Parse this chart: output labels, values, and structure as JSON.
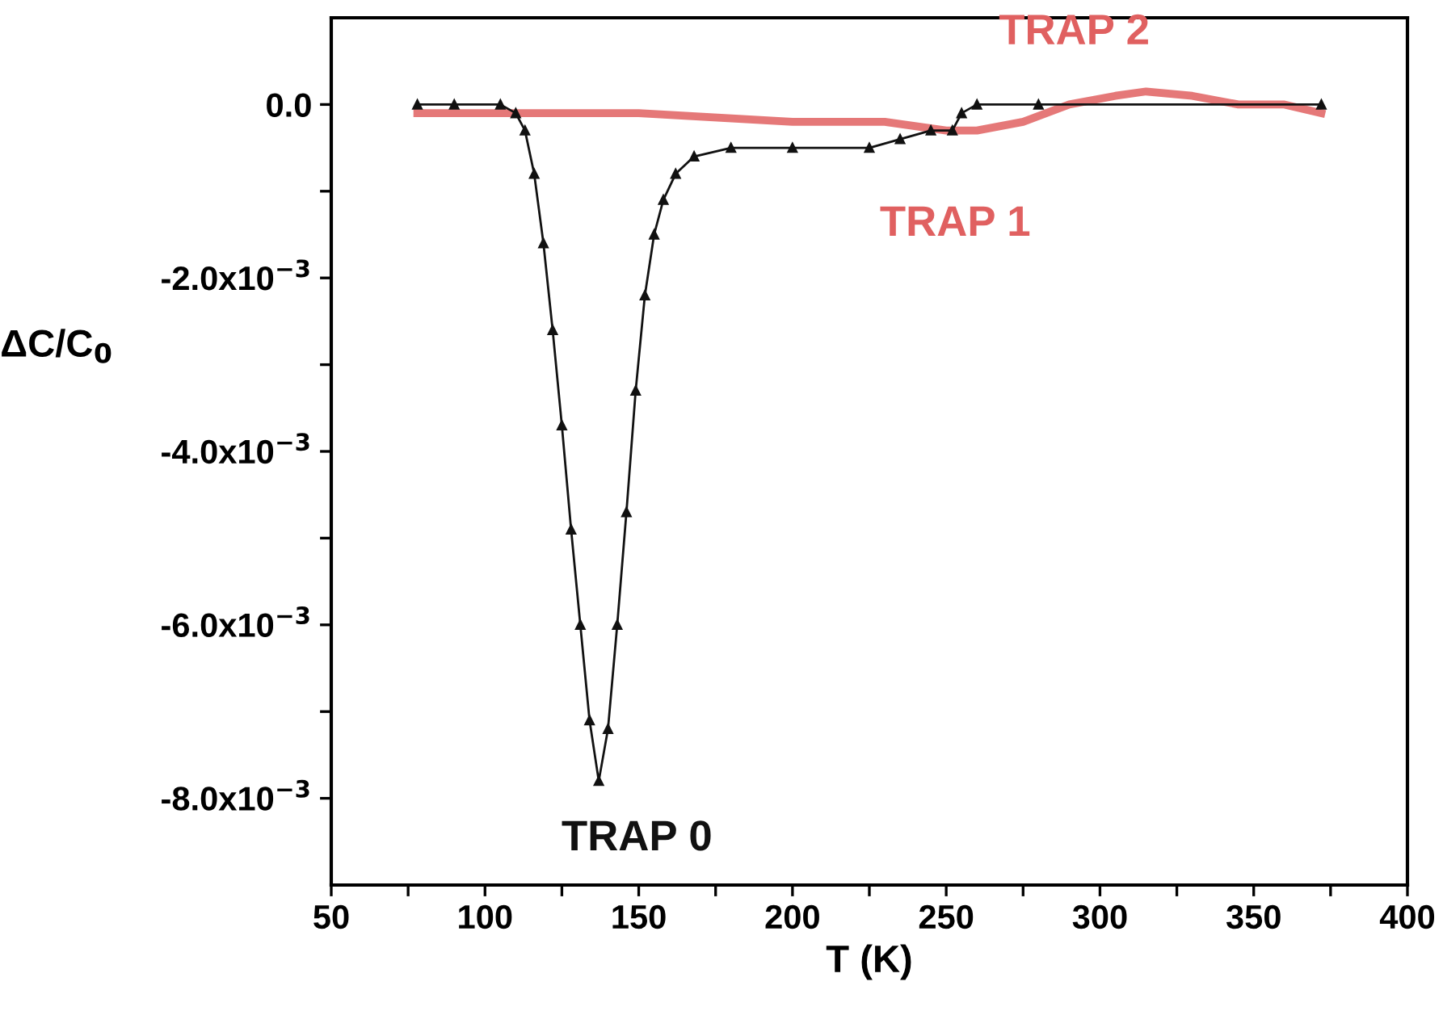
{
  "chart_data": {
    "type": "line",
    "xlabel": "T (K)",
    "ylabel": "ΔC/C$_{0}$",
    "xlim": [
      50,
      400
    ],
    "xticks": [
      50,
      {
        "value": 75,
        "label": null
      },
      100,
      {
        "value": 125,
        "label": null
      },
      150,
      {
        "value": 175,
        "label": null
      },
      200,
      {
        "value": 225,
        "label": null
      },
      250,
      {
        "value": 275,
        "label": null
      },
      300,
      {
        "value": 325,
        "label": null
      },
      350,
      {
        "value": 375,
        "label": null
      },
      400
    ],
    "ylim": [
      -0.009,
      0.001
    ],
    "yticks": [
      {
        "value": -0.008,
        "label": "-8.0x10$^{−3}$"
      },
      {
        "value": -0.007,
        "label": null
      },
      {
        "value": -0.006,
        "label": "-6.0x10$^{−3}$"
      },
      {
        "value": -0.005,
        "label": null
      },
      {
        "value": -0.004,
        "label": "-4.0x10$^{−3}$"
      },
      {
        "value": -0.003,
        "label": null
      },
      {
        "value": -0.002,
        "label": "-2.0x10$^{−3}$"
      },
      {
        "value": -0.001,
        "label": null
      },
      {
        "value": 0.0,
        "label": "0.0"
      }
    ],
    "grid": false,
    "legend": false,
    "line_style": "solid",
    "series": [
      {
        "color": "#111111",
        "marker": "triangle",
        "x": [
          78,
          90,
          105,
          110,
          113,
          116,
          119,
          122,
          125,
          128,
          131,
          134,
          137,
          140,
          143,
          146,
          149,
          152,
          155,
          158,
          162,
          168,
          180,
          200,
          225,
          235,
          245,
          252,
          255,
          260,
          280,
          372
        ],
        "values": [
          0.0,
          0.0,
          0.0,
          -0.0001,
          -0.0003,
          -0.0008,
          -0.0016,
          -0.0026,
          -0.0037,
          -0.0049,
          -0.006,
          -0.0071,
          -0.0078,
          -0.0072,
          -0.006,
          -0.0047,
          -0.0033,
          -0.0022,
          -0.0015,
          -0.0011,
          -0.0008,
          -0.0006,
          -0.0005,
          -0.0005,
          -0.0005,
          -0.0004,
          -0.0003,
          -0.0003,
          -0.0001,
          0.0,
          0.0,
          0.0
        ]
      },
      {
        "color": "#e06060",
        "marker": "none",
        "x": [
          78,
          100,
          150,
          200,
          230,
          250,
          260,
          275,
          290,
          305,
          315,
          330,
          345,
          360,
          372
        ],
        "values": [
          -0.0001,
          -0.0001,
          -0.0001,
          -0.0002,
          -0.0002,
          -0.0003,
          -0.0003,
          -0.0002,
          0.0,
          0.0001,
          0.00015,
          0.0001,
          0.0,
          0.0,
          -0.0001
        ]
      }
    ],
    "annotations": [
      {
        "text": "TRAP 0",
        "x": 137,
        "y": -0.0078
      },
      {
        "text": "TRAP 1",
        "x": 250,
        "y": -0.0003
      },
      {
        "text": "TRAP 2",
        "x": 315,
        "y": 0.00015
      }
    ]
  }
}
